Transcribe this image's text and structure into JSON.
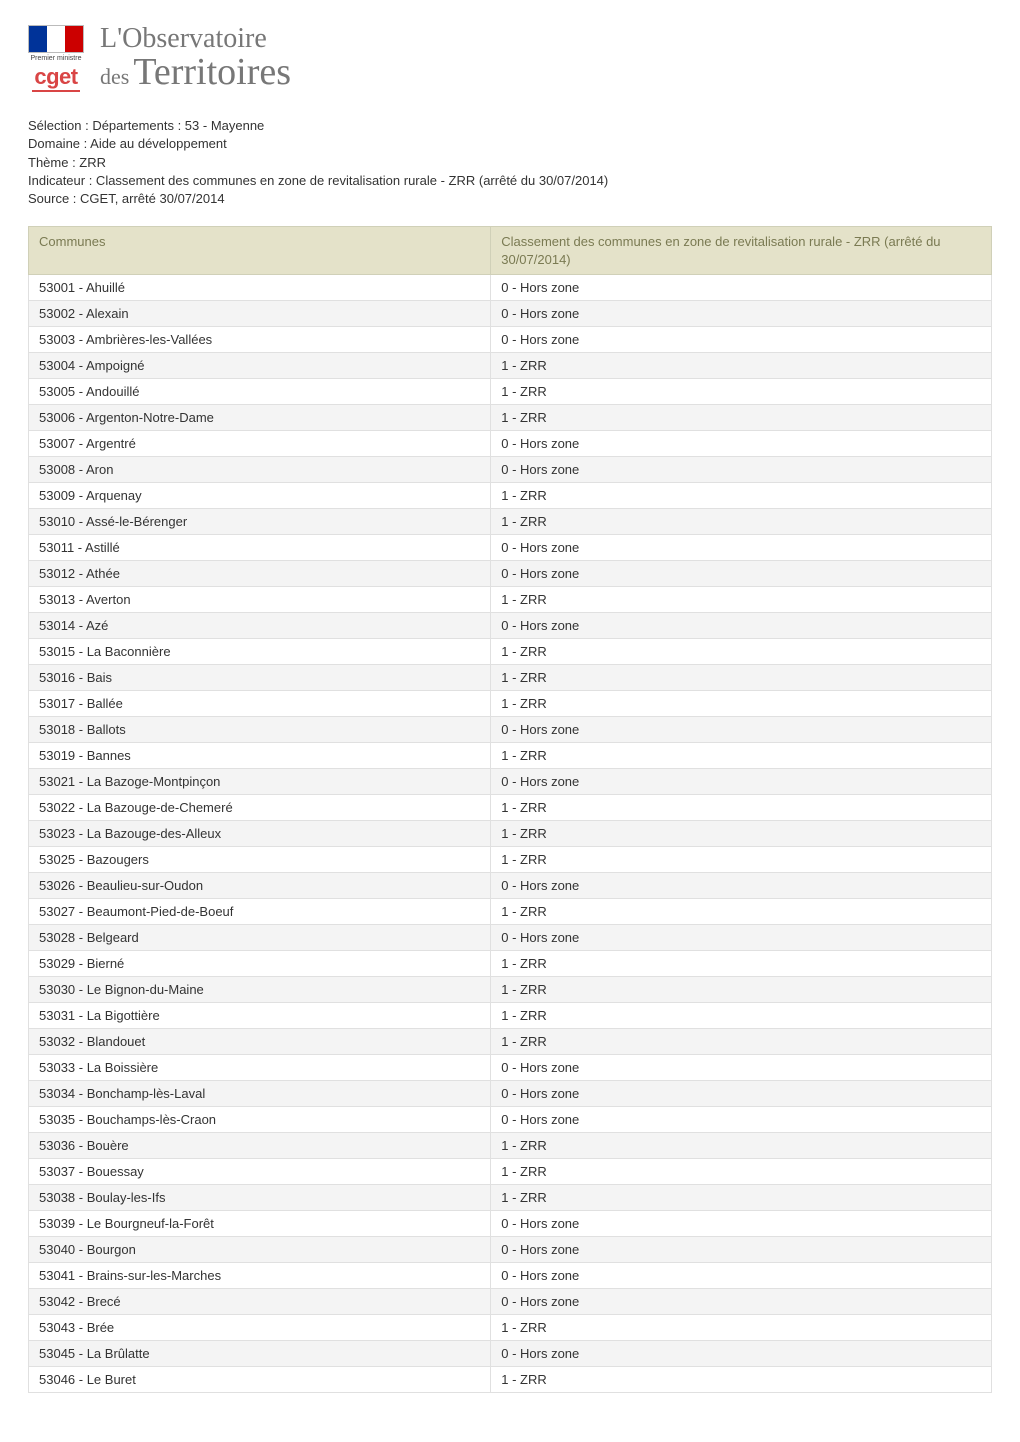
{
  "logo": {
    "pm_line1": "Premier ministre",
    "pm_line2": "",
    "cget": "cget"
  },
  "title": {
    "line1": "L'Observatoire",
    "des": "des",
    "terr": "Territoires"
  },
  "meta": {
    "selection": "Sélection : Départements : 53 - Mayenne",
    "domaine": "Domaine : Aide au développement",
    "theme": "Thème : ZRR",
    "indicateur": "Indicateur : Classement des communes en zone de revitalisation rurale - ZRR (arrêté du 30/07/2014)",
    "source": "Source : CGET, arrêté 30/07/2014"
  },
  "table": {
    "columns": [
      "Communes",
      "Classement des communes en zone de revitalisation rurale - ZRR (arrêté du 30/07/2014)"
    ],
    "col_widths": [
      "48%",
      "52%"
    ],
    "header_bg": "#e4e2c9",
    "header_color": "#7a7a52",
    "row_odd_bg": "#ffffff",
    "row_even_bg": "#f4f4f4",
    "border_color": "#e0e0e0",
    "fontsize": 13,
    "rows": [
      [
        "53001 - Ahuillé",
        "0 - Hors zone"
      ],
      [
        "53002 - Alexain",
        "0 - Hors zone"
      ],
      [
        "53003 - Ambrières-les-Vallées",
        "0 - Hors zone"
      ],
      [
        "53004 - Ampoigné",
        "1 - ZRR"
      ],
      [
        "53005 - Andouillé",
        "1 - ZRR"
      ],
      [
        "53006 - Argenton-Notre-Dame",
        "1 - ZRR"
      ],
      [
        "53007 - Argentré",
        "0 - Hors zone"
      ],
      [
        "53008 - Aron",
        "0 - Hors zone"
      ],
      [
        "53009 - Arquenay",
        "1 - ZRR"
      ],
      [
        "53010 - Assé-le-Bérenger",
        "1 - ZRR"
      ],
      [
        "53011 - Astillé",
        "0 - Hors zone"
      ],
      [
        "53012 - Athée",
        "0 - Hors zone"
      ],
      [
        "53013 - Averton",
        "1 - ZRR"
      ],
      [
        "53014 - Azé",
        "0 - Hors zone"
      ],
      [
        "53015 - La Baconnière",
        "1 - ZRR"
      ],
      [
        "53016 - Bais",
        "1 - ZRR"
      ],
      [
        "53017 - Ballée",
        "1 - ZRR"
      ],
      [
        "53018 - Ballots",
        "0 - Hors zone"
      ],
      [
        "53019 - Bannes",
        "1 - ZRR"
      ],
      [
        "53021 - La Bazoge-Montpinçon",
        "0 - Hors zone"
      ],
      [
        "53022 - La Bazouge-de-Chemeré",
        "1 - ZRR"
      ],
      [
        "53023 - La Bazouge-des-Alleux",
        "1 - ZRR"
      ],
      [
        "53025 - Bazougers",
        "1 - ZRR"
      ],
      [
        "53026 - Beaulieu-sur-Oudon",
        "0 - Hors zone"
      ],
      [
        "53027 - Beaumont-Pied-de-Boeuf",
        "1 - ZRR"
      ],
      [
        "53028 - Belgeard",
        "0 - Hors zone"
      ],
      [
        "53029 - Bierné",
        "1 - ZRR"
      ],
      [
        "53030 - Le Bignon-du-Maine",
        "1 - ZRR"
      ],
      [
        "53031 - La Bigottière",
        "1 - ZRR"
      ],
      [
        "53032 - Blandouet",
        "1 - ZRR"
      ],
      [
        "53033 - La Boissière",
        "0 - Hors zone"
      ],
      [
        "53034 - Bonchamp-lès-Laval",
        "0 - Hors zone"
      ],
      [
        "53035 - Bouchamps-lès-Craon",
        "0 - Hors zone"
      ],
      [
        "53036 - Bouère",
        "1 - ZRR"
      ],
      [
        "53037 - Bouessay",
        "1 - ZRR"
      ],
      [
        "53038 - Boulay-les-Ifs",
        "1 - ZRR"
      ],
      [
        "53039 - Le Bourgneuf-la-Forêt",
        "0 - Hors zone"
      ],
      [
        "53040 - Bourgon",
        "0 - Hors zone"
      ],
      [
        "53041 - Brains-sur-les-Marches",
        "0 - Hors zone"
      ],
      [
        "53042 - Brecé",
        "0 - Hors zone"
      ],
      [
        "53043 - Brée",
        "1 - ZRR"
      ],
      [
        "53045 - La Brûlatte",
        "0 - Hors zone"
      ],
      [
        "53046 - Le Buret",
        "1 - ZRR"
      ]
    ]
  }
}
